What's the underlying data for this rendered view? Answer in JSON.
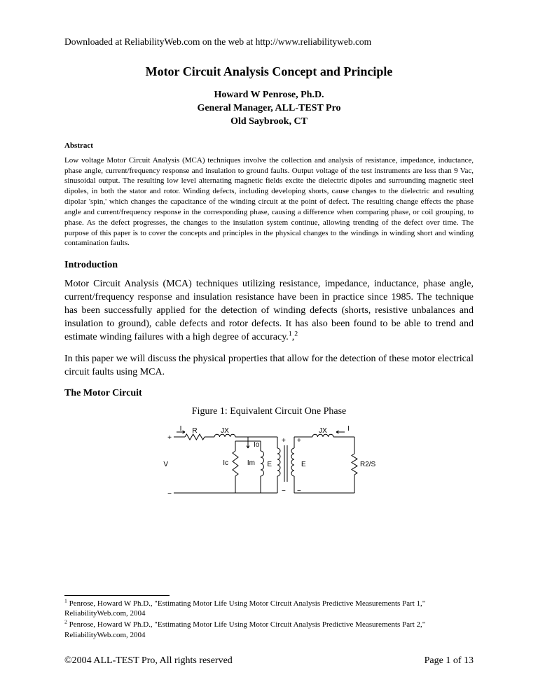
{
  "header": {
    "download_line": "Downloaded at ReliabilityWeb.com on the web at http://www.reliabilityweb.com"
  },
  "title": "Motor Circuit Analysis Concept and Principle",
  "author": {
    "name": "Howard W Penrose, Ph.D.",
    "role": "General Manager, ALL-TEST Pro",
    "location": "Old Saybrook, CT"
  },
  "abstract": {
    "heading": "Abstract",
    "text": "Low voltage Motor Circuit Analysis (MCA) techniques involve the collection and analysis of resistance, impedance, inductance, phase angle, current/frequency response and insulation to ground faults.  Output voltage of the test instruments are less than 9 Vac, sinusoidal output.  The resulting low level alternating magnetic fields excite the dielectric dipoles and surrounding magnetic steel dipoles, in both the stator and rotor.  Winding defects, including developing shorts, cause changes to the dielectric and resulting dipolar 'spin,' which changes the capacitance of the winding circuit at the point of defect.  The resulting change effects the phase angle and current/frequency response in the corresponding phase, causing a difference when comparing phase, or coil grouping, to phase.  As the defect progresses, the changes to the insulation system continue, allowing trending of the defect over time.  The purpose of this paper is to cover the concepts and principles in the physical changes to the windings in winding short and winding contamination faults."
  },
  "sections": {
    "introduction": {
      "heading": "Introduction",
      "para1_pre": "Motor Circuit Analysis (MCA) techniques utilizing resistance, impedance, inductance, phase angle, current/frequency response and insulation resistance have been in practice since 1985.  The technique has been successfully applied for the detection of winding defects (shorts, resistive unbalances and insulation to ground), cable defects and rotor defects.  It has also been found to be able to trend and estimate winding failures with a high degree of accuracy.",
      "para2": "In this paper we will discuss the physical properties that allow for the detection of these motor electrical circuit faults using MCA."
    },
    "motor_circuit": {
      "heading": "The Motor Circuit",
      "figure_caption": "Figure 1: Equivalent Circuit One Phase"
    }
  },
  "circuit": {
    "labels": {
      "I_left": "I",
      "R": "R",
      "JX_left": "JX",
      "Io": "Io",
      "Ic": "Ic",
      "Im": "Im",
      "V": "V",
      "E_left": "E",
      "E_right": "E",
      "JX_right": "JX",
      "I_right": "I",
      "R2S": "R2/S",
      "plus": "+",
      "minus": "−"
    },
    "stroke": "#000000",
    "stroke_width": 1,
    "font_size": 10,
    "font_family": "Arial, sans-serif"
  },
  "footnotes": {
    "fn1": "Penrose, Howard W Ph.D., \"Estimating Motor Life Using Motor Circuit Analysis Predictive Measurements Part 1,\" ReliabilityWeb.com, 2004",
    "fn2": "Penrose, Howard W Ph.D., \"Estimating Motor Life Using Motor Circuit Analysis Predictive Measurements Part 2,\" ReliabilityWeb.com, 2004"
  },
  "footer": {
    "copyright": "©2004 ALL-TEST Pro, All rights reserved",
    "page": "Page 1 of 13"
  }
}
